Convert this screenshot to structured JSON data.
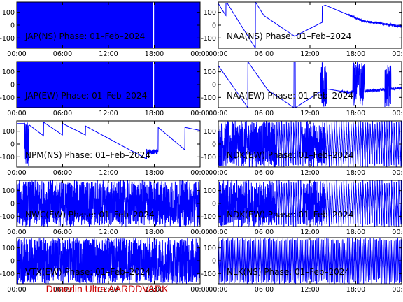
{
  "footer": {
    "text": "Dunedin Ultra AARDDVARK",
    "color": "#cc0000"
  },
  "colors": {
    "trace": "#0000ff",
    "axes": "#000000",
    "background": "#ffffff"
  },
  "chart_data": [
    {
      "type": "line",
      "title": "JAP(NS) Phase: 01–Feb–2024",
      "x_ticks": [
        "00:00",
        "06:00",
        "12:00",
        "18:00",
        "00:00"
      ],
      "y_ticks": [
        100,
        0,
        -100
      ],
      "ylim": [
        -180,
        180
      ],
      "xlim_hours": [
        0,
        24
      ],
      "pattern": "saturated"
    },
    {
      "type": "line",
      "title": "NAA(NS) Phase: 01–Feb–2024",
      "x_ticks": [
        "00:00",
        "06:00",
        "12:00",
        "18:00",
        "00:00"
      ],
      "y_ticks": [
        100,
        0,
        -100
      ],
      "ylim": [
        -180,
        180
      ],
      "xlim_hours": [
        0,
        24
      ],
      "pattern": "NAA-NS"
    },
    {
      "type": "line",
      "title": "JAP(EW) Phase: 01–Feb–2024",
      "x_ticks": [
        "00:00",
        "06:00",
        "12:00",
        "18:00",
        "00:00"
      ],
      "y_ticks": [
        100,
        0,
        -100
      ],
      "ylim": [
        -180,
        180
      ],
      "xlim_hours": [
        0,
        24
      ],
      "pattern": "saturated"
    },
    {
      "type": "line",
      "title": "NAA(EW) Phase: 01–Feb–2024",
      "x_ticks": [
        "00:00",
        "06:00",
        "12:00",
        "18:00",
        "00:00"
      ],
      "y_ticks": [
        100,
        0,
        -100
      ],
      "ylim": [
        -180,
        180
      ],
      "xlim_hours": [
        0,
        24
      ],
      "pattern": "NAA-EW"
    },
    {
      "type": "line",
      "title": "NPM(NS) Phase: 01–Feb–2024",
      "x_ticks": [
        "00:00",
        "06:00",
        "12:00",
        "18:00",
        "00:00"
      ],
      "y_ticks": [
        100,
        0,
        -100
      ],
      "ylim": [
        -180,
        180
      ],
      "xlim_hours": [
        0,
        24
      ],
      "pattern": "NPM-NS"
    },
    {
      "type": "line",
      "title": "NDK(EW) Phase: 01–Feb–2024",
      "x_ticks": [
        "00:00",
        "06:00",
        "12:00",
        "18:00",
        "00:00"
      ],
      "y_ticks": [
        100,
        0,
        -100
      ],
      "ylim": [
        -180,
        180
      ],
      "xlim_hours": [
        0,
        24
      ],
      "pattern": "sawtooth-noisy"
    },
    {
      "type": "line",
      "title": "NWC(EW) Phase: 01–Feb–2024",
      "x_ticks": [
        "00:00",
        "06:00",
        "12:00",
        "18:00",
        "00:00"
      ],
      "y_ticks": [
        100,
        0,
        -100
      ],
      "ylim": [
        -180,
        180
      ],
      "xlim_hours": [
        0,
        24
      ],
      "pattern": "dense-noisy"
    },
    {
      "type": "line",
      "title": "NDK(EW) Phase: 01–Feb–2024",
      "x_ticks": [
        "00:00",
        "06:00",
        "12:00",
        "18:00",
        "00:00"
      ],
      "y_ticks": [
        100,
        0,
        -100
      ],
      "ylim": [
        -180,
        180
      ],
      "xlim_hours": [
        0,
        24
      ],
      "pattern": "sawtooth-noisy"
    },
    {
      "type": "line",
      "title": "VTX(EW) Phase: 01–Feb–2024",
      "x_ticks": [
        "00:00",
        "06:00",
        "12:00",
        "18:00",
        "00:00"
      ],
      "y_ticks": [
        100,
        0,
        -100
      ],
      "ylim": [
        -180,
        180
      ],
      "xlim_hours": [
        0,
        24
      ],
      "pattern": "dense-noisy"
    },
    {
      "type": "line",
      "title": "NLK(NS) Phase: 01–Feb–2024",
      "x_ticks": [
        "00:00",
        "06:00",
        "12:00",
        "18:00",
        "00:00"
      ],
      "y_ticks": [
        100,
        0,
        -100
      ],
      "ylim": [
        -180,
        180
      ],
      "xlim_hours": [
        0,
        24
      ],
      "pattern": "sawtooth-NLK"
    }
  ]
}
